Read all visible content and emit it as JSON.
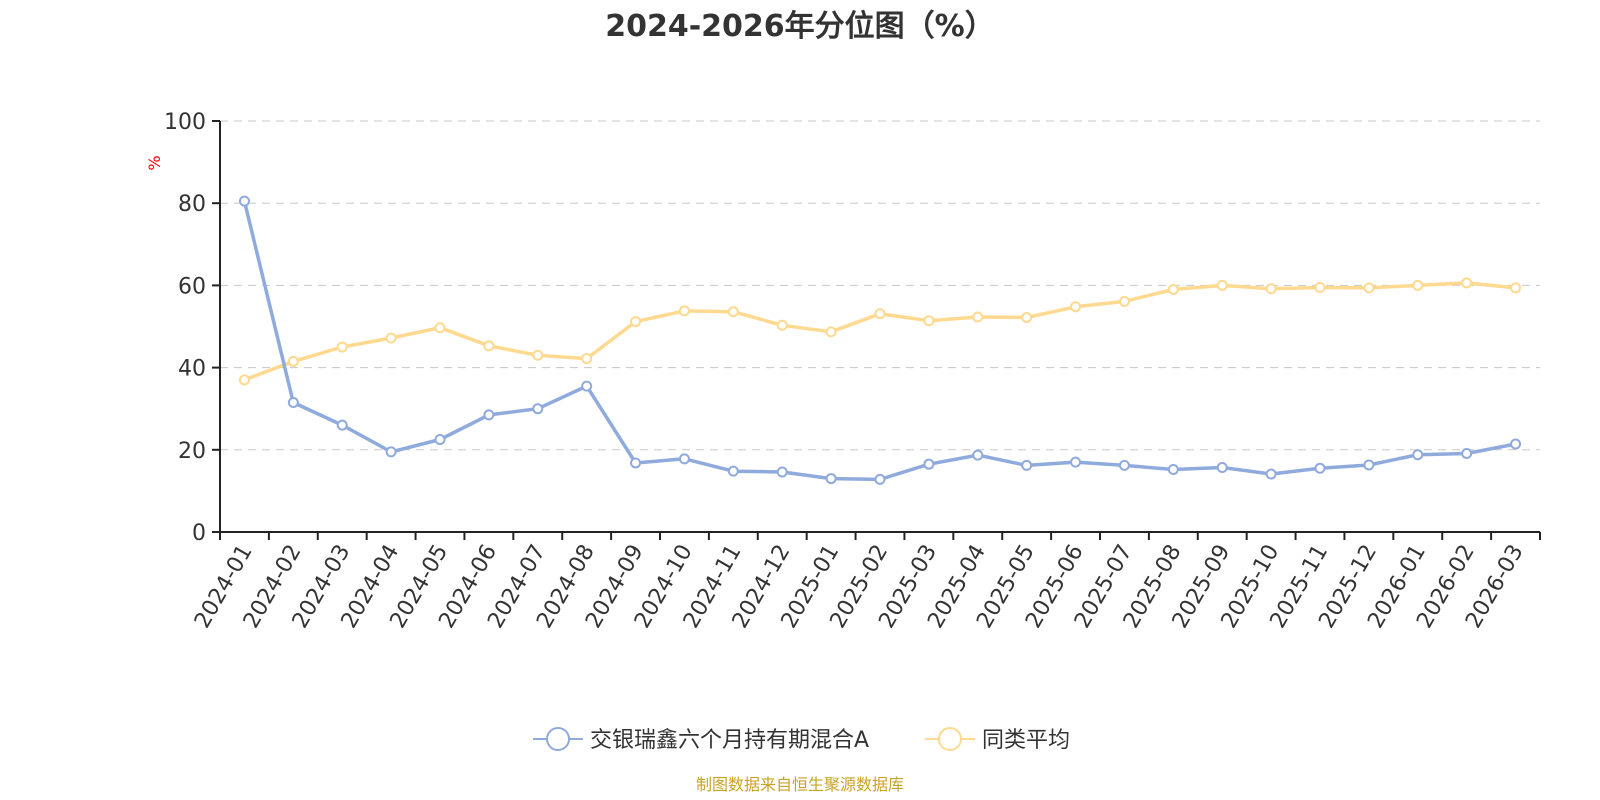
{
  "chart_data": {
    "type": "line",
    "title": "2024-2026年分位图（%）",
    "ylabel": "%",
    "xlabel": "",
    "ylim": [
      0,
      100
    ],
    "y_ticks": [
      0,
      20,
      40,
      60,
      80,
      100
    ],
    "grid": true,
    "legend_position": "bottom-center",
    "categories": [
      "2024-01",
      "2024-02",
      "2024-03",
      "2024-04",
      "2024-05",
      "2024-06",
      "2024-07",
      "2024-08",
      "2024-09",
      "2024-10",
      "2024-11",
      "2024-12",
      "2025-01",
      "2025-02",
      "2025-03",
      "2025-04",
      "2025-05",
      "2025-06",
      "2025-07",
      "2025-08",
      "2025-09",
      "2025-10",
      "2025-11",
      "2025-12",
      "2026-01",
      "2026-02",
      "2026-03"
    ],
    "series": [
      {
        "name": "交银瑞鑫六个月持有期混合A",
        "color": "#8faadc",
        "values": [
          80.5,
          31.5,
          26.0,
          19.5,
          22.5,
          28.5,
          30.0,
          35.5,
          16.8,
          17.8,
          14.8,
          14.6,
          13.0,
          12.8,
          16.5,
          18.7,
          16.2,
          17.0,
          16.2,
          15.2,
          15.7,
          14.1,
          15.5,
          16.3,
          18.8,
          19.1,
          21.4
        ]
      },
      {
        "name": "同类平均",
        "color": "#ffd98f",
        "values": [
          37.0,
          41.5,
          45.0,
          47.2,
          49.7,
          45.3,
          43.0,
          42.2,
          51.2,
          53.8,
          53.6,
          50.3,
          48.7,
          53.1,
          51.4,
          52.3,
          52.2,
          54.8,
          56.1,
          59.0,
          60.0,
          59.2,
          59.5,
          59.4,
          60.0,
          60.6,
          59.4
        ]
      }
    ],
    "source": "制图数据来自恒生聚源数据库"
  }
}
